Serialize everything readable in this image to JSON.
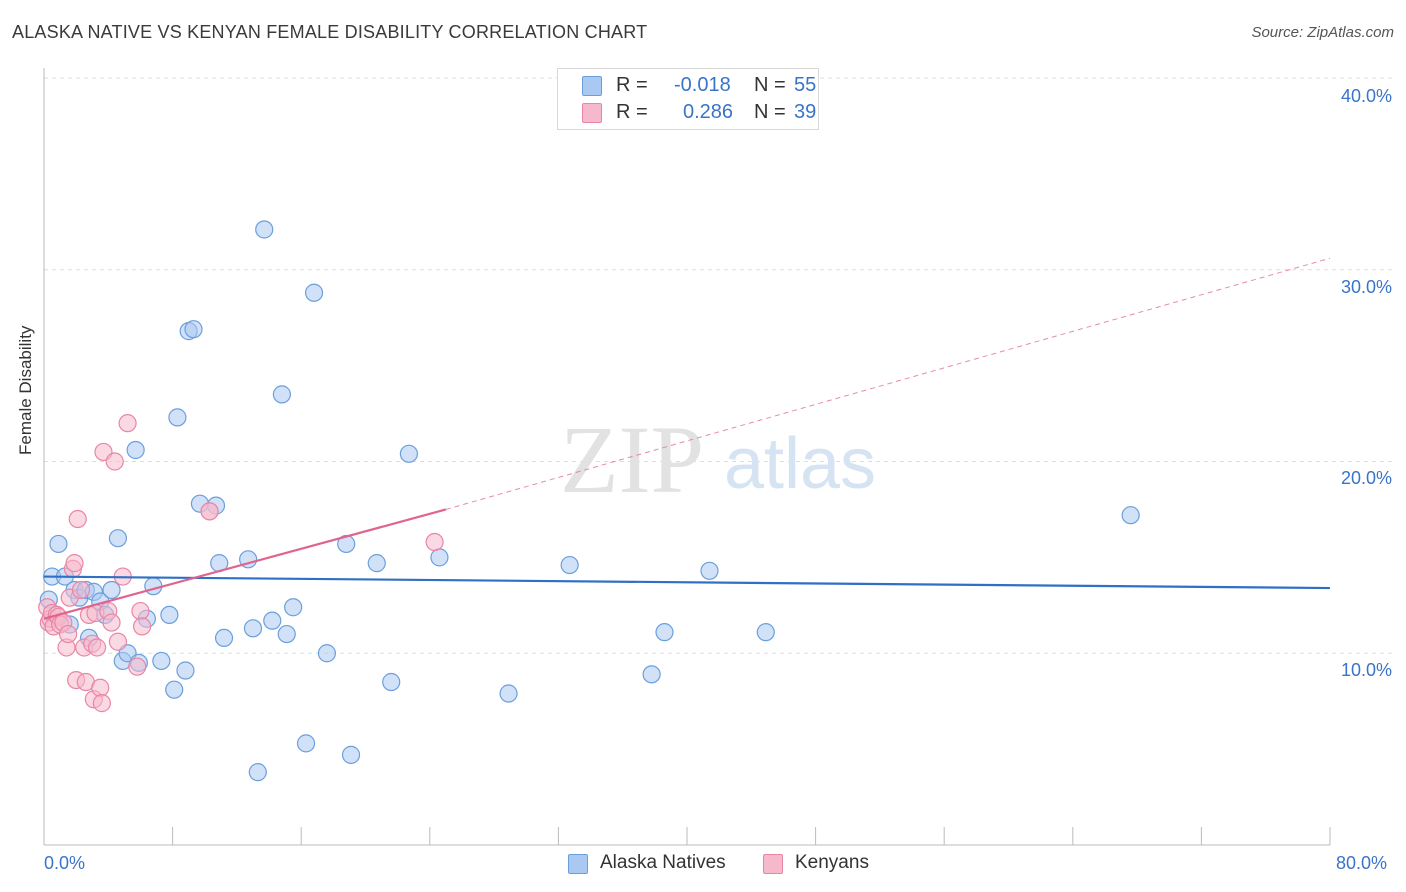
{
  "title": "ALASKA NATIVE VS KENYAN FEMALE DISABILITY CORRELATION CHART",
  "source": "Source: ZipAtlas.com",
  "watermark": {
    "zip": "ZIP",
    "atlas": "atlas"
  },
  "legend_top": {
    "r_label": "R =",
    "n_label": "N =",
    "series": [
      {
        "name": "Alaska Natives",
        "r": "-0.018",
        "n": "55"
      },
      {
        "name": "Kenyans",
        "r": "0.286",
        "n": "39"
      }
    ]
  },
  "legend_bottom": [
    "Alaska Natives",
    "Kenyans"
  ],
  "colors": {
    "blue_fill": "#a9c9f2",
    "blue_stroke": "#6b9fdc",
    "blue_line": "#2f6fc4",
    "pink_fill": "#f6b9cc",
    "pink_stroke": "#e986a7",
    "pink_line": "#e0648e",
    "grid": "#dddddd",
    "axis": "#bbbbbb",
    "tick_text": "#3a74c9"
  },
  "chart_data": {
    "type": "scatter",
    "title": "ALASKA NATIVE VS KENYAN FEMALE DISABILITY CORRELATION CHART",
    "xlabel": "",
    "ylabel": "Female Disability",
    "xlim": [
      0,
      80
    ],
    "ylim": [
      0,
      40
    ],
    "x_tick_labels": [
      "0.0%",
      "80.0%"
    ],
    "y_ticks": [
      10,
      20,
      30,
      40
    ],
    "y_tick_labels": [
      "10.0%",
      "20.0%",
      "30.0%",
      "40.0%"
    ],
    "grid": true,
    "series": [
      {
        "name": "Alaska Natives",
        "points": [
          [
            0.3,
            12.8
          ],
          [
            0.5,
            14.0
          ],
          [
            0.9,
            15.7
          ],
          [
            1.3,
            14.0
          ],
          [
            1.6,
            11.5
          ],
          [
            1.9,
            13.3
          ],
          [
            2.2,
            12.9
          ],
          [
            2.6,
            13.3
          ],
          [
            2.8,
            10.8
          ],
          [
            3.1,
            13.2
          ],
          [
            3.5,
            12.7
          ],
          [
            3.8,
            12.0
          ],
          [
            4.2,
            13.3
          ],
          [
            4.6,
            16.0
          ],
          [
            4.9,
            9.6
          ],
          [
            5.2,
            10.0
          ],
          [
            5.7,
            20.6
          ],
          [
            5.9,
            9.5
          ],
          [
            6.4,
            11.8
          ],
          [
            6.8,
            13.5
          ],
          [
            7.3,
            9.6
          ],
          [
            7.8,
            12.0
          ],
          [
            8.1,
            8.1
          ],
          [
            8.3,
            22.3
          ],
          [
            8.8,
            9.1
          ],
          [
            9.0,
            26.8
          ],
          [
            9.3,
            26.9
          ],
          [
            9.7,
            17.8
          ],
          [
            10.7,
            17.7
          ],
          [
            10.9,
            14.7
          ],
          [
            11.2,
            10.8
          ],
          [
            12.7,
            14.9
          ],
          [
            13.0,
            11.3
          ],
          [
            13.3,
            3.8
          ],
          [
            13.7,
            32.1
          ],
          [
            14.2,
            11.7
          ],
          [
            14.8,
            23.5
          ],
          [
            15.1,
            11.0
          ],
          [
            15.5,
            12.4
          ],
          [
            16.3,
            5.3
          ],
          [
            16.8,
            28.8
          ],
          [
            17.6,
            10.0
          ],
          [
            18.8,
            15.7
          ],
          [
            19.1,
            4.7
          ],
          [
            20.7,
            14.7
          ],
          [
            21.6,
            8.5
          ],
          [
            22.7,
            20.4
          ],
          [
            24.6,
            15.0
          ],
          [
            28.9,
            7.9
          ],
          [
            32.7,
            14.6
          ],
          [
            37.8,
            8.9
          ],
          [
            38.6,
            11.1
          ],
          [
            41.4,
            14.3
          ],
          [
            44.9,
            11.1
          ],
          [
            67.6,
            17.2
          ]
        ],
        "trend": {
          "x": [
            0,
            80
          ],
          "y": [
            14.0,
            13.4
          ]
        }
      },
      {
        "name": "Kenyans",
        "points": [
          [
            0.2,
            12.4
          ],
          [
            0.3,
            11.6
          ],
          [
            0.4,
            11.8
          ],
          [
            0.5,
            12.1
          ],
          [
            0.6,
            11.4
          ],
          [
            0.8,
            12.0
          ],
          [
            0.9,
            11.9
          ],
          [
            1.0,
            11.5
          ],
          [
            1.2,
            11.6
          ],
          [
            1.4,
            10.3
          ],
          [
            1.5,
            11.0
          ],
          [
            1.6,
            12.9
          ],
          [
            1.8,
            14.4
          ],
          [
            1.9,
            14.7
          ],
          [
            2.0,
            8.6
          ],
          [
            2.1,
            17.0
          ],
          [
            2.3,
            13.3
          ],
          [
            2.5,
            10.3
          ],
          [
            2.6,
            8.5
          ],
          [
            2.8,
            12.0
          ],
          [
            3.0,
            10.5
          ],
          [
            3.1,
            7.6
          ],
          [
            3.2,
            12.1
          ],
          [
            3.3,
            10.3
          ],
          [
            3.5,
            8.2
          ],
          [
            3.6,
            7.4
          ],
          [
            3.7,
            20.5
          ],
          [
            4.0,
            12.2
          ],
          [
            4.2,
            11.6
          ],
          [
            4.4,
            20.0
          ],
          [
            4.6,
            10.6
          ],
          [
            4.9,
            14.0
          ],
          [
            5.2,
            22.0
          ],
          [
            5.8,
            9.3
          ],
          [
            6.0,
            12.2
          ],
          [
            6.1,
            11.4
          ],
          [
            10.3,
            17.4
          ],
          [
            24.3,
            15.8
          ],
          [
            10.3,
            17.4
          ]
        ],
        "trend": {
          "x": [
            0,
            25
          ],
          "y": [
            11.8,
            17.5
          ]
        },
        "trend_extension": {
          "x": [
            25,
            80
          ],
          "y": [
            17.5,
            30.6
          ]
        }
      }
    ]
  }
}
